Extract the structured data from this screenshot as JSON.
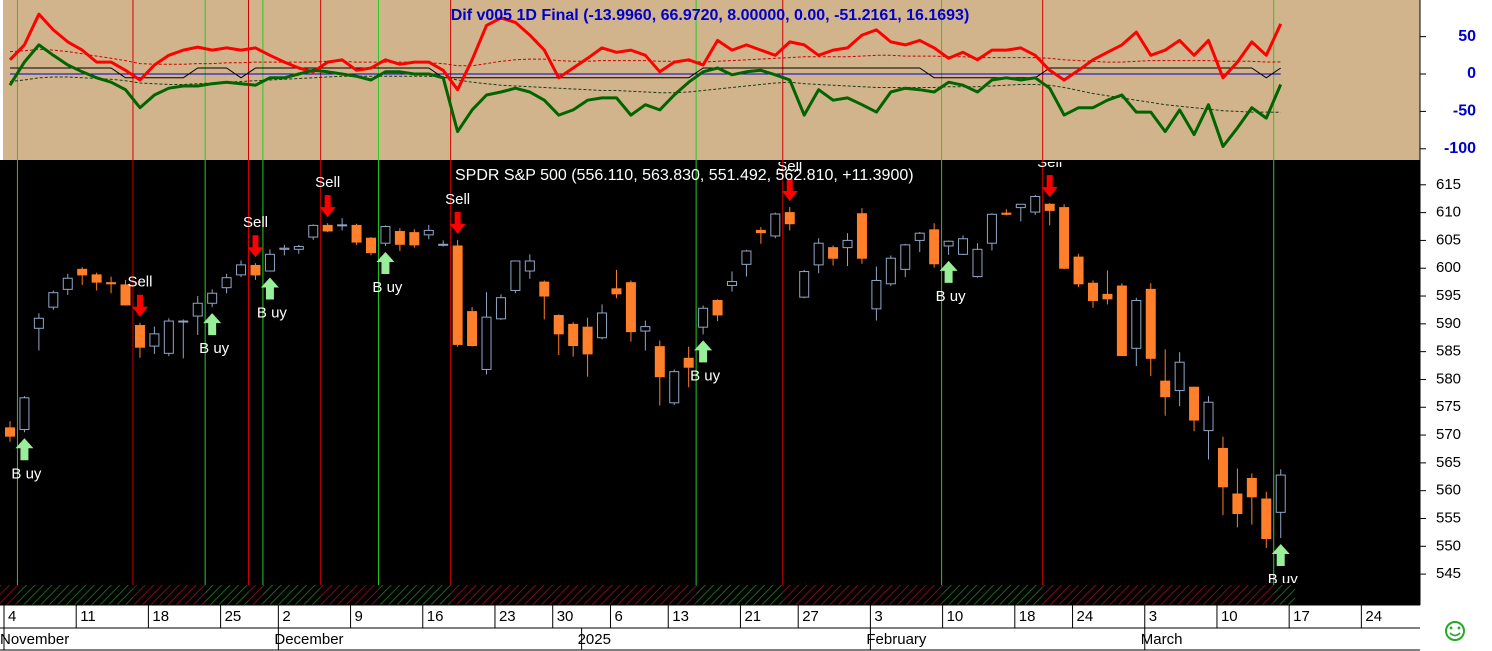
{
  "chart_data": {
    "type": "candlestick",
    "title": "SPDR S&P 500 (556.110, 563.830, 551.492, 562.810, +11.3900)",
    "indicator_title": "Dif v005 1D Final (-13.9960, 66.9720, 8.00000, 0.00, -51.2161, 16.1693)",
    "categories": [
      "4",
      null,
      null,
      null,
      null,
      "11",
      null,
      null,
      null,
      null,
      "18",
      null,
      null,
      null,
      null,
      "25",
      null,
      null,
      null,
      "2",
      null,
      null,
      null,
      null,
      "9",
      null,
      null,
      null,
      null,
      "16",
      null,
      null,
      null,
      null,
      "23",
      null,
      null,
      null,
      "30",
      null,
      null,
      null,
      "6",
      null,
      null,
      null,
      "13",
      null,
      null,
      null,
      null,
      "21",
      null,
      null,
      null,
      "27",
      null,
      null,
      null,
      null,
      "3",
      null,
      null,
      null,
      null,
      "10",
      null,
      null,
      null,
      null,
      "18",
      null,
      null,
      null,
      "24",
      null,
      null,
      null,
      null,
      "3",
      null,
      null,
      null,
      null,
      "10",
      null,
      null,
      null,
      null,
      "17",
      null,
      null,
      null,
      null,
      "24",
      null,
      null,
      null
    ],
    "months": [
      "November",
      null,
      null,
      null,
      null,
      null,
      null,
      null,
      null,
      null,
      null,
      null,
      null,
      null,
      null,
      null,
      null,
      null,
      null,
      "December",
      null,
      null,
      null,
      null,
      null,
      null,
      null,
      null,
      null,
      null,
      null,
      null,
      null,
      null,
      null,
      null,
      null,
      null,
      null,
      null,
      "2025",
      null,
      null,
      null,
      null,
      null,
      null,
      null,
      null,
      null,
      null,
      null,
      null,
      null,
      null,
      null,
      null,
      null,
      null,
      null,
      "February",
      null,
      null,
      null,
      null,
      null,
      null,
      null,
      null,
      null,
      null,
      null,
      null,
      null,
      null,
      null,
      null,
      null,
      null,
      "March",
      null,
      null,
      null,
      null,
      null,
      null,
      null,
      null,
      null,
      null,
      null,
      null,
      null,
      null,
      null,
      null,
      null,
      null
    ],
    "open": [
      571.3,
      571,
      589.2,
      593,
      596.2,
      599.8,
      598.8,
      597.4,
      597,
      589.7,
      586,
      584.7,
      590.4,
      591.4,
      593.7,
      596.5,
      598.8,
      600.5,
      599.5,
      603.4,
      603.4,
      605.6,
      607.7,
      607.7,
      607.7,
      605.4,
      604.5,
      606.6,
      606.4,
      606,
      604.2,
      604,
      592.2,
      581.8,
      590.9,
      596,
      599.5,
      597.5,
      591.5,
      589.9,
      589.4,
      587.5,
      596.3,
      597.4,
      588.7,
      585.9,
      575.8,
      583.8,
      589.4,
      594.2,
      596.9,
      600.7,
      606.8,
      605.8,
      610,
      594.8,
      600.6,
      603.7,
      603.7,
      609.8,
      592.7,
      597.2,
      599.8,
      605,
      606.9,
      604,
      602.5,
      598.5,
      604.5,
      609.9,
      610.9,
      610.1,
      611.5,
      610.9,
      602,
      597.3,
      595.3,
      596.8,
      585.6,
      596.2,
      579.7,
      578,
      578.6,
      570.8,
      567.6,
      559.4,
      562.2,
      558.5,
      556.11,
      null,
      null,
      null,
      null,
      null,
      null,
      null,
      null,
      null
    ],
    "high": [
      572.5,
      577,
      591.9,
      596,
      599,
      600.2,
      599.2,
      598.5,
      597.9,
      590.2,
      589.5,
      591,
      590.8,
      595,
      596.2,
      599,
      601.4,
      600.9,
      603.4,
      604.2,
      604.2,
      607.9,
      608.1,
      609,
      608,
      605.6,
      607.7,
      607.2,
      607,
      607.8,
      605,
      605.1,
      593,
      595.7,
      595.3,
      601.3,
      602.5,
      597.8,
      591.7,
      590.3,
      591.1,
      593.5,
      599.7,
      597.8,
      590.6,
      587,
      581.8,
      585.9,
      593.3,
      594.4,
      599.4,
      603.3,
      607.4,
      610,
      611,
      599.7,
      605.4,
      604.1,
      606.3,
      610.8,
      600.3,
      602.3,
      604.4,
      606.5,
      608.1,
      605,
      605.9,
      604.5,
      609.9,
      610.6,
      611.5,
      613.2,
      611.7,
      611.5,
      602.6,
      597.8,
      599.6,
      597.3,
      594.7,
      597.3,
      585.4,
      584.9,
      578.7,
      577,
      569.7,
      564,
      563.1,
      559.8,
      563.83,
      null,
      null,
      null,
      null,
      null,
      null,
      null,
      null,
      null
    ],
    "low": [
      568.8,
      570.5,
      585.2,
      592.5,
      595.2,
      597,
      596,
      595.5,
      593.5,
      583.9,
      584.6,
      584.2,
      583.8,
      588,
      593,
      595.5,
      598.4,
      597.9,
      599.4,
      602.3,
      602.6,
      605.1,
      606.5,
      606.8,
      604.2,
      602.3,
      604,
      603.1,
      603.7,
      605.2,
      603.9,
      585.9,
      585.9,
      580.9,
      590.7,
      595.5,
      598.1,
      590.8,
      584.4,
      584.1,
      580.5,
      587.2,
      594.6,
      586.8,
      585.2,
      575.3,
      575.4,
      578.6,
      588.1,
      590.5,
      595.8,
      598.5,
      604.4,
      605.4,
      606.8,
      594.6,
      599.1,
      600.5,
      600.4,
      600.8,
      590.6,
      596.8,
      598.4,
      602.9,
      600.1,
      602.4,
      602.4,
      598.3,
      603.2,
      609.5,
      608.4,
      609.6,
      607.7,
      599.8,
      596.6,
      592.9,
      593.5,
      584.3,
      582.4,
      580.6,
      573.5,
      575.2,
      570.7,
      565.6,
      555.6,
      553.4,
      553.9,
      549.7,
      551.492,
      null,
      null,
      null,
      null,
      null,
      null,
      null,
      null,
      null
    ],
    "close": [
      569.8,
      576.7,
      591,
      595.6,
      598.2,
      598.8,
      597.5,
      597.2,
      593.4,
      585.8,
      588.2,
      590.5,
      590.5,
      593.7,
      595.5,
      598.3,
      600.6,
      598.8,
      602.5,
      603.6,
      603.9,
      607.7,
      606.7,
      607.8,
      604.7,
      602.8,
      607.5,
      604.3,
      604.2,
      606.8,
      604.3,
      586.3,
      586.1,
      591.2,
      594.7,
      601.3,
      601.3,
      595,
      588.2,
      586.1,
      584.6,
      591.95,
      595.4,
      588.6,
      589.5,
      580.5,
      581.4,
      582.2,
      592.8,
      591.6,
      597.6,
      603.1,
      606.4,
      609.75,
      608,
      599.4,
      604.5,
      601.8,
      605,
      601.8,
      597.8,
      601.8,
      604.2,
      606.3,
      600.8,
      604.85,
      605.3,
      603.4,
      609.7,
      609.7,
      611.5,
      612.9,
      610.4,
      600,
      597.2,
      594.2,
      594.5,
      584.3,
      594.2,
      583.8,
      576.9,
      583.1,
      572.7,
      575.9,
      560.7,
      555.9,
      558.9,
      551.4,
      562.81,
      null,
      null,
      null,
      null,
      null,
      null,
      null,
      null,
      null
    ],
    "up_color": "#8fa6c6",
    "down_color": "#ff7f2a",
    "ylim": [
      543.4,
      619.1
    ],
    "yticks": [
      545,
      550,
      555,
      560,
      565,
      570,
      575,
      580,
      585,
      590,
      595,
      600,
      605,
      610,
      615
    ],
    "signals": [
      null,
      "B uy",
      null,
      null,
      null,
      null,
      null,
      null,
      null,
      "Sell",
      null,
      null,
      null,
      null,
      "B uy",
      null,
      null,
      "Sell",
      "B uy",
      null,
      null,
      null,
      "Sell",
      null,
      null,
      null,
      "B uy",
      null,
      null,
      null,
      null,
      "Sell",
      null,
      null,
      null,
      null,
      null,
      null,
      null,
      null,
      null,
      null,
      null,
      null,
      null,
      null,
      null,
      null,
      "B uy",
      null,
      null,
      null,
      null,
      null,
      "Sell",
      null,
      null,
      null,
      null,
      null,
      null,
      null,
      null,
      null,
      null,
      "B uy",
      null,
      null,
      null,
      null,
      null,
      null,
      "Sell",
      null,
      null,
      null,
      null,
      null,
      null,
      null,
      null,
      null,
      null,
      null,
      null,
      null,
      null,
      null,
      "B uy",
      null,
      null,
      null,
      null,
      null,
      null,
      null,
      null,
      null
    ],
    "indicator_ylim": [
      -115,
      99
    ],
    "indicator_yticks": [
      50,
      0,
      -50,
      -100
    ],
    "series": [
      {
        "color": "#0000cc",
        "width": 1,
        "dash": false,
        "values": [
          0,
          0,
          0,
          0,
          0,
          0,
          0,
          0,
          0,
          0,
          0,
          0,
          0,
          0,
          0,
          0,
          0,
          0,
          0,
          0,
          0,
          0,
          0,
          0,
          0,
          0,
          0,
          0,
          0,
          0,
          0,
          0,
          0,
          0,
          0,
          0,
          0,
          0,
          0,
          0,
          0,
          0,
          0,
          0,
          0,
          0,
          0,
          0,
          0,
          0,
          0,
          0,
          0,
          0,
          0,
          0,
          0,
          0,
          0,
          0,
          0,
          0,
          0,
          0,
          0,
          0,
          0,
          0,
          0,
          0,
          0,
          0,
          0,
          0,
          0,
          0,
          0,
          0,
          0,
          0,
          0,
          0,
          0,
          0,
          0,
          0,
          0,
          0,
          0,
          null,
          null,
          null,
          null,
          null,
          null,
          null,
          null,
          null
        ]
      },
      {
        "color": "#000000",
        "width": 1,
        "dash": false,
        "values": [
          8,
          8,
          8,
          8,
          8,
          8,
          8,
          8,
          -5,
          -5,
          -5,
          -5,
          -5,
          8,
          8,
          8,
          -5,
          8,
          8,
          8,
          8,
          8,
          8,
          8,
          8,
          8,
          8,
          8,
          8,
          8,
          -5,
          -5,
          -5,
          -5,
          -5,
          -5,
          -5,
          -5,
          -5,
          -5,
          -5,
          -5,
          -5,
          -5,
          -5,
          -5,
          -5,
          -5,
          8,
          8,
          8,
          8,
          8,
          8,
          8,
          8,
          8,
          8,
          8,
          8,
          8,
          8,
          8,
          8,
          -5,
          -5,
          -5,
          -5,
          -5,
          -5,
          -5,
          -5,
          8,
          8,
          8,
          8,
          8,
          8,
          8,
          8,
          8,
          8,
          8,
          8,
          8,
          8,
          8,
          -5,
          8,
          null,
          null,
          null,
          null,
          null,
          null,
          null,
          null,
          null
        ]
      },
      {
        "color": "#cc0000",
        "width": 1,
        "dash": true,
        "values": [
          30,
          31,
          33,
          32,
          30,
          27,
          24,
          21,
          18,
          14,
          13,
          13,
          13,
          14,
          14,
          15,
          15,
          16,
          16,
          16,
          16,
          16,
          17,
          17,
          16,
          16,
          16,
          16,
          16,
          15,
          14,
          11,
          11,
          14,
          17,
          19,
          20,
          20,
          18,
          17,
          17,
          18,
          18,
          18,
          18,
          17,
          17,
          17,
          16,
          17,
          18,
          19,
          20,
          21,
          22,
          23,
          23,
          23,
          23,
          24,
          25,
          25,
          24,
          24,
          24,
          23,
          23,
          22,
          22,
          22,
          22,
          22,
          21,
          19,
          18,
          17,
          16,
          16,
          17,
          18,
          18,
          18,
          18,
          18,
          17,
          17,
          17,
          16,
          16.1693,
          null,
          null,
          null,
          null,
          null,
          null,
          null,
          null,
          null
        ]
      },
      {
        "color": "#1a3a1a",
        "width": 1,
        "dash": true,
        "values": [
          -10,
          -8,
          -5,
          -4,
          -4,
          -5,
          -6,
          -7,
          -9,
          -12,
          -13,
          -14,
          -14,
          -13,
          -12,
          -11,
          -10,
          -9,
          -8,
          -7,
          -6,
          -5,
          -4,
          -3,
          -3,
          -3,
          -3,
          -3,
          -3,
          -3,
          -4,
          -8,
          -11,
          -13,
          -15,
          -16,
          -17,
          -18,
          -19,
          -20,
          -21,
          -22,
          -22,
          -23,
          -24,
          -25,
          -25,
          -24,
          -22,
          -20,
          -18,
          -16,
          -14,
          -12,
          -11,
          -13,
          -14,
          -15,
          -16,
          -17,
          -18,
          -18,
          -18,
          -18,
          -18,
          -17,
          -17,
          -17,
          -16,
          -15,
          -14,
          -14,
          -15,
          -18,
          -22,
          -26,
          -29,
          -32,
          -35,
          -38,
          -41,
          -43,
          -45,
          -47,
          -49,
          -50,
          -51,
          -51,
          -51.2161,
          null,
          null,
          null,
          null,
          null,
          null,
          null,
          null,
          null
        ]
      },
      {
        "color": "#ff0000",
        "width": 3,
        "dash": false,
        "values": [
          19,
          39,
          80,
          59,
          43,
          32,
          16,
          16,
          5,
          -8,
          12,
          25,
          32,
          36,
          32,
          35,
          32,
          35,
          25,
          16,
          8,
          3,
          16,
          19,
          5,
          8,
          19,
          13,
          16,
          16,
          5,
          -21,
          19,
          65,
          75,
          69,
          52,
          32,
          -5,
          8,
          21,
          35,
          29,
          32,
          25,
          3,
          16,
          19,
          12,
          45,
          32,
          39,
          32,
          25,
          43,
          39,
          25,
          32,
          35,
          52,
          59,
          43,
          39,
          45,
          35,
          21,
          29,
          19,
          32,
          32,
          35,
          25,
          5,
          -8,
          5,
          19,
          29,
          39,
          56,
          25,
          32,
          45,
          25,
          45,
          -5,
          16,
          43,
          25,
          66.972,
          null,
          null,
          null,
          null,
          null,
          null,
          null,
          null,
          null
        ]
      },
      {
        "color": "#006400",
        "width": 3,
        "dash": false,
        "values": [
          -15,
          16,
          39,
          25,
          12,
          3,
          -5,
          -11,
          -21,
          -45,
          -28,
          -19,
          -16,
          -16,
          -13,
          -11,
          -13,
          -15,
          -5,
          -5,
          0,
          5,
          3,
          0,
          -3,
          -8,
          3,
          3,
          0,
          0,
          -5,
          -77,
          -48,
          -28,
          -24,
          -19,
          -24,
          -35,
          -55,
          -48,
          -35,
          -32,
          -32,
          -55,
          -41,
          -48,
          -28,
          -11,
          3,
          8,
          -1,
          3,
          5,
          -1,
          -8,
          -55,
          -21,
          -35,
          -32,
          -41,
          -51,
          -24,
          -19,
          -21,
          -24,
          -11,
          -15,
          -24,
          -8,
          -5,
          -8,
          -5,
          -19,
          -55,
          -45,
          -45,
          -35,
          -28,
          -51,
          -51,
          -77,
          -48,
          -81,
          -41,
          -97,
          -72,
          -45,
          -59,
          -13.996,
          null,
          null,
          null,
          null,
          null,
          null,
          null,
          null,
          null
        ]
      }
    ]
  }
}
